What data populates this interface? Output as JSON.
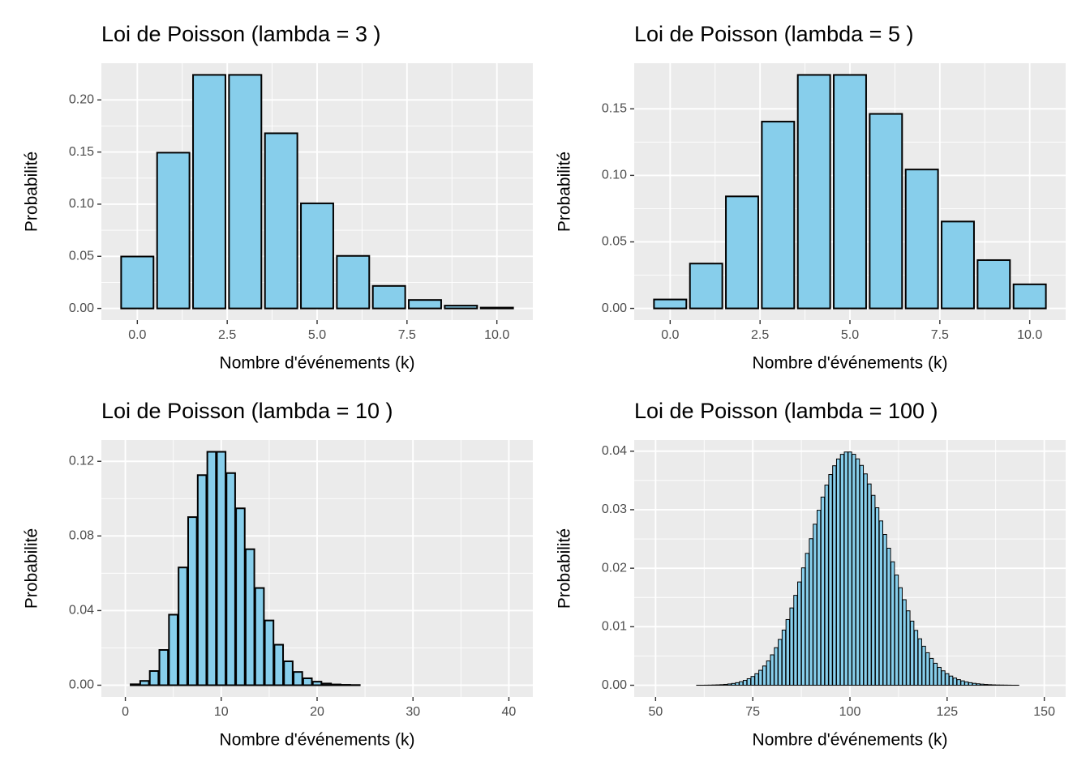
{
  "chart_data": [
    {
      "type": "bar",
      "title": "Loi de Poisson (lambda = 3 )",
      "xlabel": "Nombre d'événements (k)",
      "ylabel": "Probabilité",
      "color": "#87ceeb",
      "grid": true,
      "x": [
        0,
        1,
        2,
        3,
        4,
        5,
        6,
        7,
        8,
        9,
        10
      ],
      "values": [
        0.0498,
        0.1494,
        0.224,
        0.224,
        0.168,
        0.1008,
        0.0504,
        0.0216,
        0.0081,
        0.0027,
        0.0008
      ],
      "xlim": [
        -1,
        11
      ],
      "ylim": [
        -0.0112,
        0.2352
      ],
      "xticks": [
        {
          "value": 0,
          "label": "0.0"
        },
        2.5,
        {
          "value": 5,
          "label": "5.0"
        },
        7.5,
        {
          "value": 10,
          "label": "10.0"
        }
      ],
      "yticks": [
        {
          "value": 0,
          "label": "0.00"
        },
        0.05,
        {
          "value": 0.1,
          "label": "0.10"
        },
        0.15,
        {
          "value": 0.2,
          "label": "0.20"
        }
      ]
    },
    {
      "type": "bar",
      "title": "Loi de Poisson (lambda = 5 )",
      "xlabel": "Nombre d'événements (k)",
      "ylabel": "Probabilité",
      "color": "#87ceeb",
      "grid": true,
      "x": [
        0,
        1,
        2,
        3,
        4,
        5,
        6,
        7,
        8,
        9,
        10
      ],
      "values": [
        0.0067,
        0.0337,
        0.0842,
        0.1404,
        0.1755,
        0.1755,
        0.1462,
        0.1044,
        0.0653,
        0.0363,
        0.0181
      ],
      "xlim": [
        -1,
        11
      ],
      "ylim": [
        -0.0088,
        0.1843
      ],
      "xticks": [
        {
          "value": 0,
          "label": "0.0"
        },
        2.5,
        {
          "value": 5,
          "label": "5.0"
        },
        7.5,
        {
          "value": 10,
          "label": "10.0"
        }
      ],
      "yticks": [
        {
          "value": 0,
          "label": "0.00"
        },
        0.05,
        {
          "value": 0.1,
          "label": "0.10"
        },
        0.15
      ]
    },
    {
      "type": "bar",
      "title": "Loi de Poisson (lambda = 10 )",
      "xlabel": "Nombre d'événements (k)",
      "ylabel": "Probabilité",
      "color": "#87ceeb",
      "grid": true,
      "x": [
        0,
        1,
        2,
        3,
        4,
        5,
        6,
        7,
        8,
        9,
        10,
        11,
        12,
        13,
        14,
        15,
        16,
        17,
        18,
        19,
        20,
        21,
        22,
        23,
        24,
        25,
        26,
        27,
        28,
        29,
        30,
        31,
        32,
        33,
        34,
        35,
        36,
        37,
        38,
        39,
        40
      ],
      "values": [
        0.0,
        0.0005,
        0.0023,
        0.0076,
        0.0189,
        0.0378,
        0.0631,
        0.0901,
        0.1126,
        0.1251,
        0.1251,
        0.1137,
        0.0948,
        0.0729,
        0.0521,
        0.0347,
        0.0217,
        0.0128,
        0.0071,
        0.0037,
        0.0019,
        0.0009,
        0.0004,
        0.0002,
        0.0001,
        0,
        0,
        0,
        0,
        0,
        0,
        0,
        0,
        0,
        0,
        0,
        0,
        0,
        0,
        0,
        0
      ],
      "xlim": [
        -2.5,
        42.5
      ],
      "ylim": [
        -0.0063,
        0.1314
      ],
      "xticks": [
        0,
        10,
        20,
        30,
        40
      ],
      "yticks": [
        {
          "value": 0,
          "label": "0.00"
        },
        0.04,
        0.08,
        0.12
      ]
    },
    {
      "type": "bar",
      "title": "Loi de Poisson (lambda = 100 )",
      "xlabel": "Nombre d'événements (k)",
      "ylabel": "Probabilité",
      "color": "#87ceeb",
      "grid": true,
      "x": [
        50,
        51,
        52,
        53,
        54,
        55,
        56,
        57,
        58,
        59,
        60,
        61,
        62,
        63,
        64,
        65,
        66,
        67,
        68,
        69,
        70,
        71,
        72,
        73,
        74,
        75,
        76,
        77,
        78,
        79,
        80,
        81,
        82,
        83,
        84,
        85,
        86,
        87,
        88,
        89,
        90,
        91,
        92,
        93,
        94,
        95,
        96,
        97,
        98,
        99,
        100,
        101,
        102,
        103,
        104,
        105,
        106,
        107,
        108,
        109,
        110,
        111,
        112,
        113,
        114,
        115,
        116,
        117,
        118,
        119,
        120,
        121,
        122,
        123,
        124,
        125,
        126,
        127,
        128,
        129,
        130,
        131,
        132,
        133,
        134,
        135,
        136,
        137,
        138,
        139,
        140,
        141,
        142,
        143,
        144,
        145,
        146,
        147,
        148,
        149,
        150
      ],
      "values": [
        0,
        0,
        0,
        0,
        0,
        0,
        0,
        0,
        0,
        0,
        0,
        1e-05,
        1e-05,
        2e-05,
        3e-05,
        5e-05,
        7e-05,
        0.0001,
        0.00015,
        0.00022,
        0.00031,
        0.00044,
        0.00061,
        0.00083,
        0.00112,
        0.0015,
        0.00197,
        0.00256,
        0.00329,
        0.00416,
        0.0052,
        0.00642,
        0.00783,
        0.00943,
        0.01123,
        0.01321,
        0.01536,
        0.01765,
        0.02006,
        0.02254,
        0.02504,
        0.02752,
        0.02991,
        0.03216,
        0.03421,
        0.03601,
        0.03751,
        0.03867,
        0.03946,
        0.03986,
        0.03986,
        0.03947,
        0.03869,
        0.03757,
        0.03612,
        0.0344,
        0.03245,
        0.03033,
        0.02808,
        0.02576,
        0.02342,
        0.0211,
        0.01884,
        0.01667,
        0.01462,
        0.01272,
        0.01096,
        0.00937,
        0.00794,
        0.00667,
        0.00556,
        0.00459,
        0.00376,
        0.00306,
        0.00247,
        0.00198,
        0.00157,
        0.00123,
        0.00096,
        0.00075,
        0.00057,
        0.00044,
        0.00033,
        0.00025,
        0.00019,
        0.00014,
        0.0001,
        7e-05,
        5e-05,
        4e-05,
        3e-05,
        2e-05,
        1e-05,
        1e-05,
        0,
        0,
        0,
        0,
        0,
        0,
        0
      ],
      "xlim": [
        44.5,
        155.5
      ],
      "ylim": [
        -0.002,
        0.0419
      ],
      "xticks": [
        50,
        75,
        100,
        125,
        150
      ],
      "yticks": [
        {
          "value": 0,
          "label": "0.00"
        },
        0.01,
        0.02,
        0.03,
        0.04
      ]
    }
  ]
}
